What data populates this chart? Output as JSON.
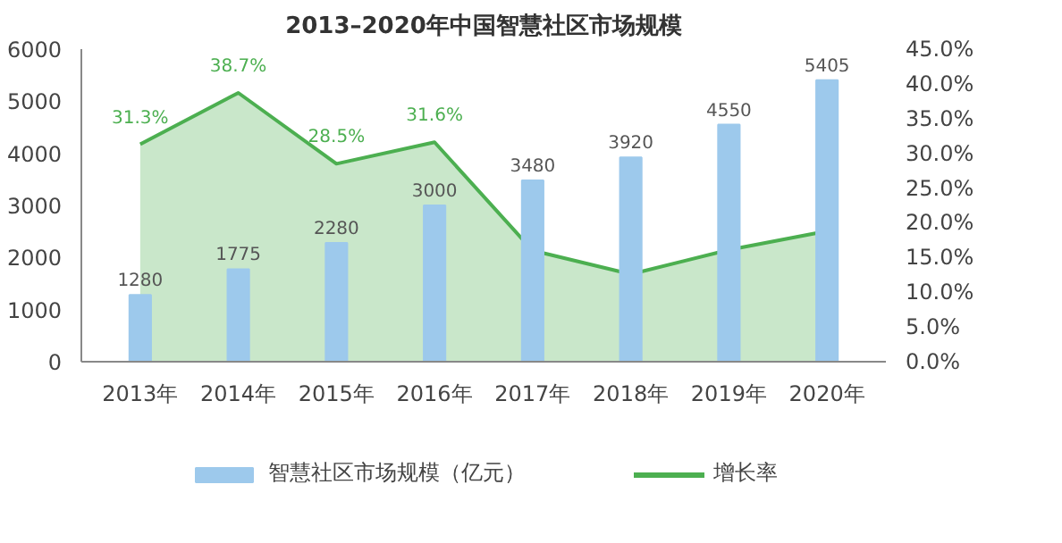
{
  "chart_data": {
    "type": "bar",
    "title": "2013–2020年中国智慧社区市场规模",
    "categories": [
      "2013年",
      "2014年",
      "2015年",
      "2016年",
      "2017年",
      "2018年",
      "2019年",
      "2020年"
    ],
    "series": [
      {
        "name": "智慧社区市场规模（亿元）",
        "color": "#9dc9ec",
        "values": [
          1280,
          1775,
          2280,
          3000,
          3480,
          3920,
          4550,
          5405
        ],
        "value_labels": [
          "1280",
          "1775",
          "2280",
          "3000",
          "3480",
          "3920",
          "4550",
          "5405"
        ]
      },
      {
        "name": "增长率",
        "type": "area",
        "axis": "y2",
        "color": "#4caf50",
        "values": [
          31.3,
          38.7,
          28.5,
          31.6,
          16.0,
          12.6,
          16.1,
          18.8
        ],
        "value_labels": [
          "31.3%",
          "38.7%",
          "28.5%",
          "31.6%",
          null,
          null,
          null,
          null
        ]
      }
    ],
    "ylim": [
      0,
      6000
    ],
    "yticks": [
      0,
      1000,
      2000,
      3000,
      4000,
      5000,
      6000
    ],
    "y2lim": [
      0,
      45
    ],
    "y2ticks": [
      {
        "value": 0,
        "label": "0.0%"
      },
      {
        "value": 5,
        "label": "5.0%"
      },
      {
        "value": 10,
        "label": "10.0%"
      },
      {
        "value": 15,
        "label": "15.0%"
      },
      {
        "value": 20,
        "label": "20.0%"
      },
      {
        "value": 25,
        "label": "25.0%"
      },
      {
        "value": 30,
        "label": "30.0%"
      },
      {
        "value": 35,
        "label": "35.0%"
      },
      {
        "value": 40,
        "label": "40.0%"
      },
      {
        "value": 45,
        "label": "45.0%"
      }
    ],
    "grid": false,
    "legend": "bottom"
  }
}
